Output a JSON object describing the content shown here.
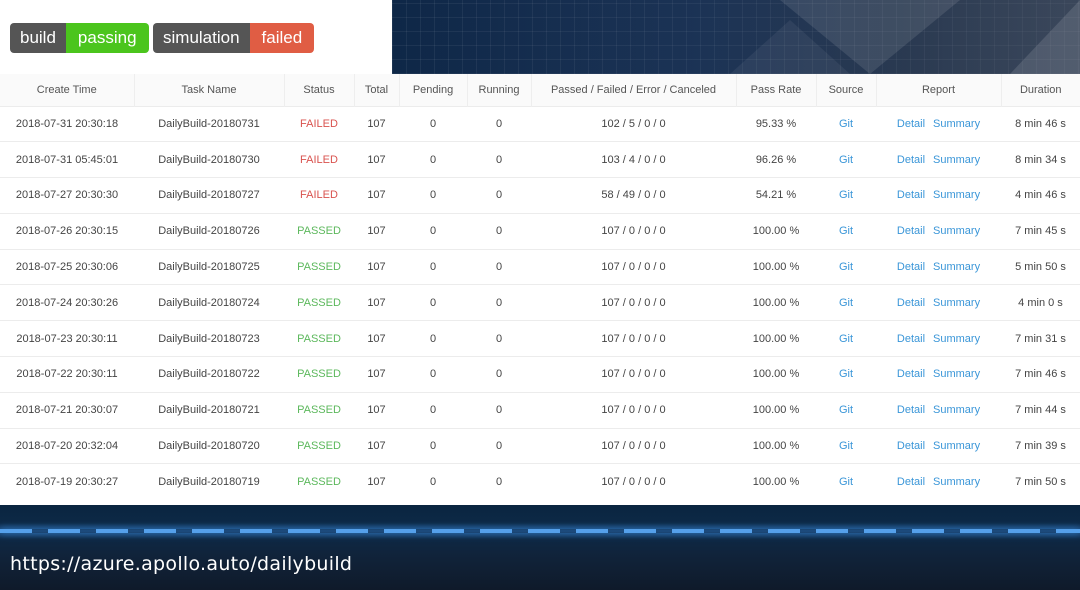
{
  "badges": {
    "build": {
      "label": "build",
      "value": "passing"
    },
    "simulation": {
      "label": "simulation",
      "value": "failed"
    }
  },
  "colors": {
    "badge_label_bg": "#555555",
    "passing": "#4bc51d",
    "failed_badge": "#e05d44",
    "status_passed": "#5cb85c",
    "status_failed": "#d9534f",
    "link": "#3a96d8"
  },
  "table": {
    "headers": [
      "Create Time",
      "Task Name",
      "Status",
      "Total",
      "Pending",
      "Running",
      "Passed / Failed / Error / Canceled",
      "Pass Rate",
      "Source",
      "Report",
      "Duration"
    ],
    "rows": [
      {
        "create_time": "2018-07-31 20:30:18",
        "task": "DailyBuild-20180731",
        "status": "FAILED",
        "total": "107",
        "pending": "0",
        "running": "0",
        "pfec": "102 / 5 / 0 / 0",
        "pass_rate": "95.33 %",
        "source": "Git",
        "detail": "Detail",
        "summary": "Summary",
        "duration": "8 min 46 s"
      },
      {
        "create_time": "2018-07-31 05:45:01",
        "task": "DailyBuild-20180730",
        "status": "FAILED",
        "total": "107",
        "pending": "0",
        "running": "0",
        "pfec": "103 / 4 / 0 / 0",
        "pass_rate": "96.26 %",
        "source": "Git",
        "detail": "Detail",
        "summary": "Summary",
        "duration": "8 min 34 s"
      },
      {
        "create_time": "2018-07-27 20:30:30",
        "task": "DailyBuild-20180727",
        "status": "FAILED",
        "total": "107",
        "pending": "0",
        "running": "0",
        "pfec": "58 / 49 / 0 / 0",
        "pass_rate": "54.21 %",
        "source": "Git",
        "detail": "Detail",
        "summary": "Summary",
        "duration": "4 min 46 s"
      },
      {
        "create_time": "2018-07-26 20:30:15",
        "task": "DailyBuild-20180726",
        "status": "PASSED",
        "total": "107",
        "pending": "0",
        "running": "0",
        "pfec": "107 / 0 / 0 / 0",
        "pass_rate": "100.00 %",
        "source": "Git",
        "detail": "Detail",
        "summary": "Summary",
        "duration": "7 min 45 s"
      },
      {
        "create_time": "2018-07-25 20:30:06",
        "task": "DailyBuild-20180725",
        "status": "PASSED",
        "total": "107",
        "pending": "0",
        "running": "0",
        "pfec": "107 / 0 / 0 / 0",
        "pass_rate": "100.00 %",
        "source": "Git",
        "detail": "Detail",
        "summary": "Summary",
        "duration": "5 min 50 s"
      },
      {
        "create_time": "2018-07-24 20:30:26",
        "task": "DailyBuild-20180724",
        "status": "PASSED",
        "total": "107",
        "pending": "0",
        "running": "0",
        "pfec": "107 / 0 / 0 / 0",
        "pass_rate": "100.00 %",
        "source": "Git",
        "detail": "Detail",
        "summary": "Summary",
        "duration": "4 min 0 s"
      },
      {
        "create_time": "2018-07-23 20:30:11",
        "task": "DailyBuild-20180723",
        "status": "PASSED",
        "total": "107",
        "pending": "0",
        "running": "0",
        "pfec": "107 / 0 / 0 / 0",
        "pass_rate": "100.00 %",
        "source": "Git",
        "detail": "Detail",
        "summary": "Summary",
        "duration": "7 min 31 s"
      },
      {
        "create_time": "2018-07-22 20:30:11",
        "task": "DailyBuild-20180722",
        "status": "PASSED",
        "total": "107",
        "pending": "0",
        "running": "0",
        "pfec": "107 / 0 / 0 / 0",
        "pass_rate": "100.00 %",
        "source": "Git",
        "detail": "Detail",
        "summary": "Summary",
        "duration": "7 min 46 s"
      },
      {
        "create_time": "2018-07-21 20:30:07",
        "task": "DailyBuild-20180721",
        "status": "PASSED",
        "total": "107",
        "pending": "0",
        "running": "0",
        "pfec": "107 / 0 / 0 / 0",
        "pass_rate": "100.00 %",
        "source": "Git",
        "detail": "Detail",
        "summary": "Summary",
        "duration": "7 min 44 s"
      },
      {
        "create_time": "2018-07-20 20:32:04",
        "task": "DailyBuild-20180720",
        "status": "PASSED",
        "total": "107",
        "pending": "0",
        "running": "0",
        "pfec": "107 / 0 / 0 / 0",
        "pass_rate": "100.00 %",
        "source": "Git",
        "detail": "Detail",
        "summary": "Summary",
        "duration": "7 min 39 s"
      },
      {
        "create_time": "2018-07-19 20:30:27",
        "task": "DailyBuild-20180719",
        "status": "PASSED",
        "total": "107",
        "pending": "0",
        "running": "0",
        "pfec": "107 / 0 / 0 / 0",
        "pass_rate": "100.00 %",
        "source": "Git",
        "detail": "Detail",
        "summary": "Summary",
        "duration": "7 min 50 s"
      }
    ]
  },
  "footer": {
    "url": "https://azure.apollo.auto/dailybuild"
  }
}
